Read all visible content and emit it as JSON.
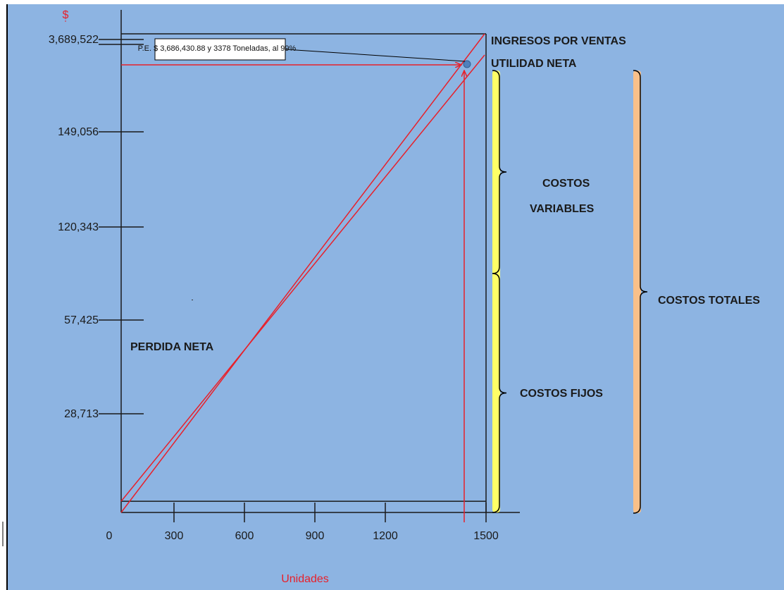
{
  "chart_data": {
    "type": "line",
    "title": "",
    "ylabel": "$",
    "xlabel": "Unidades",
    "x_ticks": [
      0,
      300,
      600,
      900,
      1200,
      1500
    ],
    "x_tick_labels": [
      "0",
      "300",
      "600",
      "900",
      "1200",
      "1500"
    ],
    "xlim": [
      0,
      1500
    ],
    "y_tick_labels": [
      "28,713",
      "57,425",
      "120,343",
      "149,056",
      "3,689,522"
    ],
    "series": [
      {
        "name": "INGRESOS POR VENTAS",
        "x": [
          0,
          1500
        ],
        "y": [
          0,
          3689522
        ]
      },
      {
        "name": "",
        "x": [
          0,
          1500
        ],
        "y": [
          86138,
          3689522
        ]
      },
      {
        "name": "",
        "x": [
          0,
          1500
        ],
        "y": [
          86138,
          86138
        ]
      }
    ],
    "break_even": {
      "units": 1436,
      "amount": 3686430.88
    },
    "annotations": {
      "callout": "P.E. $ 3,686,430.88  y 3378  Toneladas,   al  99%",
      "ingresos": "INGRESOS POR VENTAS",
      "utilidad": "UTILIDAD NETA",
      "perdida": "PERDIDA  NETA",
      "costos_variables_1": "COSTOS",
      "costos_variables_2": "VARIABLES",
      "costos_fijos": "COSTOS FIJOS",
      "costos_totales": "COSTOS TOTALES"
    },
    "colors": {
      "background": "#8db4e2",
      "line": "#e8202a",
      "axis": "#1a1a1a",
      "brace_variables": "#ffff66",
      "brace_totales": "#f9c089",
      "point": "#4f81bd"
    }
  }
}
